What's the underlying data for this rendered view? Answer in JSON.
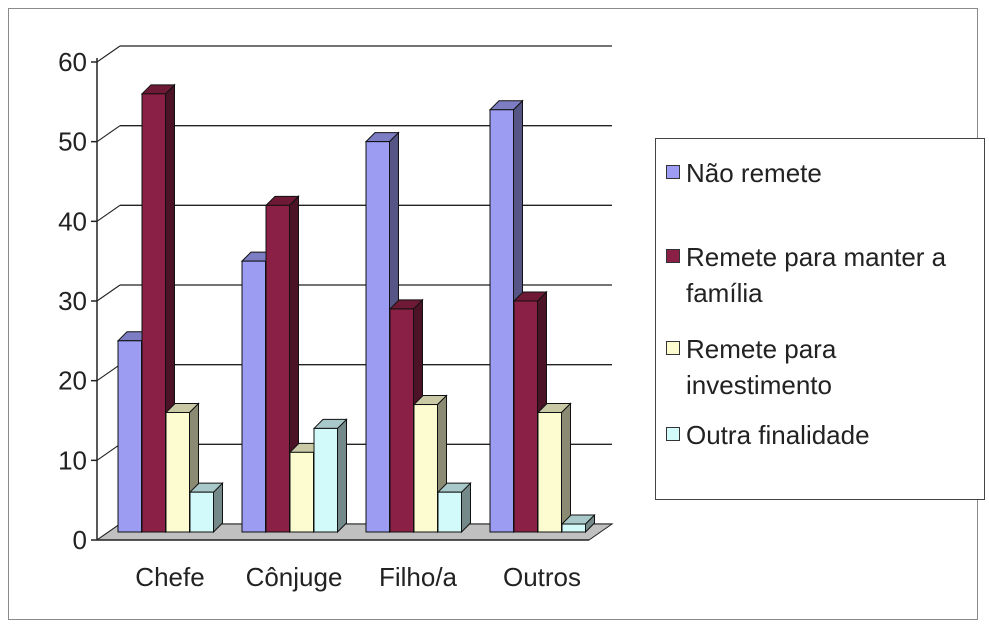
{
  "chart_data": {
    "type": "bar",
    "title": "",
    "xlabel": "",
    "ylabel": "",
    "ylim": [
      0,
      60
    ],
    "yticks": [
      "0",
      "10",
      "20",
      "30",
      "40",
      "50",
      "60"
    ],
    "categories": [
      "Chefe",
      "Cônjuge",
      "Filho/a",
      "Outros"
    ],
    "grid": true,
    "legend_position": "right",
    "series": [
      {
        "name": "Não remete",
        "color": "#9b9cf2",
        "values": [
          24,
          34,
          49,
          53
        ]
      },
      {
        "name": "Remete para manter a família",
        "color": "#8a2045",
        "values": [
          55,
          41,
          28,
          29
        ]
      },
      {
        "name": "Remete para investimento",
        "color": "#fdfbd0",
        "values": [
          15,
          10,
          16,
          15
        ]
      },
      {
        "name": "Outra finalidade",
        "color": "#d3fafb",
        "values": [
          5,
          13,
          5,
          1
        ]
      }
    ]
  }
}
